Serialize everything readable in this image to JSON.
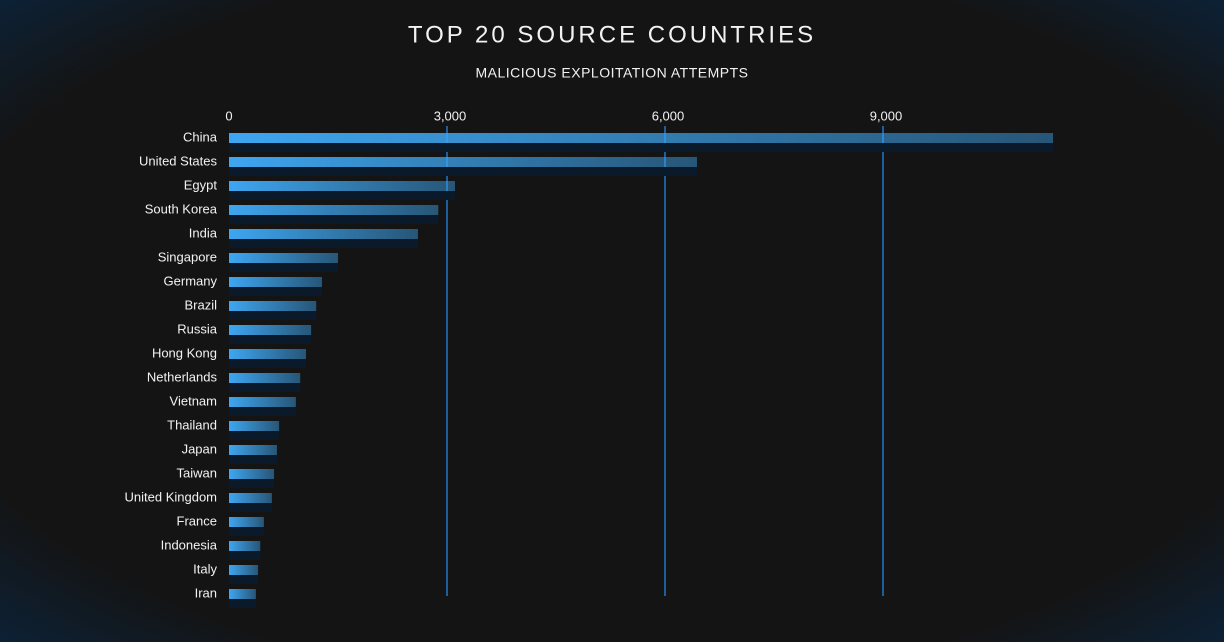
{
  "chart_data": {
    "type": "bar",
    "orientation": "horizontal",
    "title": "TOP 20 SOURCE COUNTRIES",
    "subtitle": "MALICIOUS EXPLOITATION ATTEMPTS",
    "categories": [
      "China",
      "United States",
      "Egypt",
      "South Korea",
      "India",
      "Singapore",
      "Germany",
      "Brazil",
      "Russia",
      "Hong Kong",
      "Netherlands",
      "Vietnam",
      "Thailand",
      "Japan",
      "Taiwan",
      "United Kingdom",
      "France",
      "Indonesia",
      "Italy",
      "Iran"
    ],
    "values": [
      11340,
      6440,
      3110,
      2880,
      2600,
      1500,
      1280,
      1200,
      1130,
      1060,
      980,
      920,
      690,
      660,
      620,
      590,
      480,
      430,
      400,
      370
    ],
    "color": "#3ea6f0",
    "xlim": [
      0,
      12000
    ],
    "xticks": [
      0,
      {
        "value": 3000,
        "label": "3,000"
      },
      {
        "value": 6000,
        "label": "6,000"
      },
      {
        "value": 9000,
        "label": "9,000"
      }
    ],
    "grid": true
  }
}
